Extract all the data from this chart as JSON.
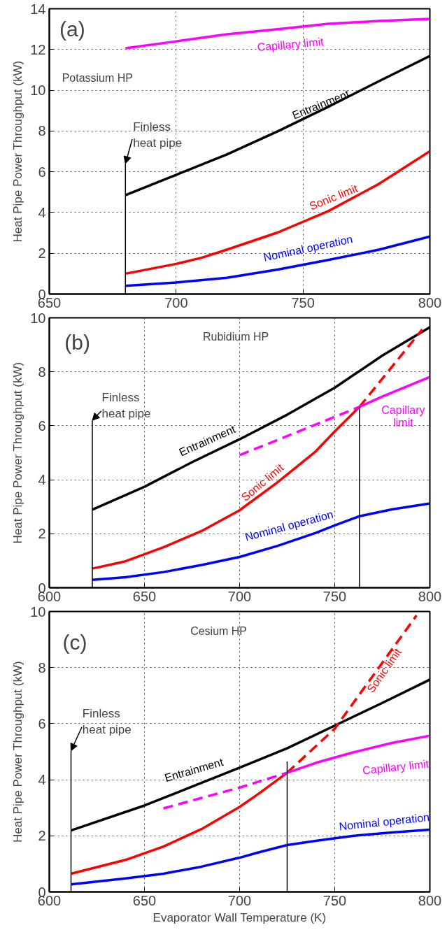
{
  "chart_data": [
    {
      "type": "line",
      "ylabel": "Heat Pipe Power Throughput (kW)",
      "xlim": [
        650,
        800
      ],
      "ylim": [
        0,
        14
      ],
      "xticks": [
        650,
        700,
        750,
        800
      ],
      "yticks": [
        0,
        2,
        4,
        6,
        8,
        10,
        12,
        14
      ],
      "grid": true,
      "series": [
        {
          "name": "Capillary limit",
          "color": "#ff00ff",
          "line_style": "solid",
          "x": [
            680,
            700,
            720,
            740,
            760,
            780,
            800
          ],
          "values": [
            12.06,
            12.4,
            12.75,
            13.0,
            13.26,
            13.4,
            13.5
          ]
        },
        {
          "name": "Entrainment",
          "color": "#000000",
          "line_style": "solid",
          "x": [
            680,
            700,
            720,
            740,
            760,
            780,
            800
          ],
          "values": [
            4.85,
            5.85,
            6.85,
            7.98,
            9.19,
            10.45,
            11.68
          ]
        },
        {
          "name": "Sonic limit",
          "color": "#ff0000",
          "line_style": "solid",
          "x": [
            680,
            700,
            710,
            720,
            740,
            760,
            780,
            800
          ],
          "values": [
            1.0,
            1.48,
            1.78,
            2.18,
            3.02,
            4.07,
            5.41,
            7.01
          ]
        },
        {
          "name": "Nominal operation",
          "color": "#0000ff",
          "line_style": "solid",
          "x": [
            680,
            700,
            720,
            740,
            760,
            780,
            800
          ],
          "values": [
            0.4,
            0.57,
            0.8,
            1.2,
            1.67,
            2.18,
            2.82
          ]
        },
        {
          "color": "#000000",
          "line_style": "solid",
          "x": [
            680,
            680
          ],
          "values": [
            0,
            6.4
          ]
        }
      ],
      "annotations": [
        "(a)",
        "Potassium HP",
        {
          "text": "Finless heat pipe",
          "x": 680,
          "y": 6.4
        }
      ]
    },
    {
      "type": "line",
      "ylabel": "Heat Pipe Power Throughput (kW)",
      "xlim": [
        600,
        800
      ],
      "ylim": [
        0,
        10
      ],
      "xticks": [
        600,
        650,
        700,
        750,
        800
      ],
      "yticks": [
        0,
        2,
        4,
        6,
        8,
        10
      ],
      "grid": true,
      "series": [
        {
          "name": "Entrainment",
          "color": "#000000",
          "line_style": "solid",
          "x": [
            622.6,
            650,
            675,
            700,
            725,
            750,
            775,
            800
          ],
          "values": [
            2.89,
            3.74,
            4.65,
            5.5,
            6.41,
            7.41,
            8.6,
            9.65
          ]
        },
        {
          "name": "Sonic limit",
          "color": "#ff0000",
          "line_style": "solid",
          "x": [
            622.6,
            640,
            660,
            680,
            700,
            720,
            740,
            750,
            763
          ],
          "values": [
            0.71,
            0.98,
            1.5,
            2.1,
            2.87,
            3.91,
            5.05,
            5.79,
            6.7
          ]
        },
        {
          "color": "#ff0000",
          "line_style": "dashed",
          "x": [
            763,
            796
          ],
          "values": [
            6.7,
            9.57
          ]
        },
        {
          "name": "Nominal operation",
          "color": "#0000ff",
          "line_style": "solid",
          "x": [
            622.6,
            640,
            660,
            680,
            700,
            720,
            740,
            750,
            763,
            780,
            800
          ],
          "values": [
            0.29,
            0.39,
            0.58,
            0.84,
            1.14,
            1.55,
            2.03,
            2.31,
            2.65,
            2.9,
            3.12
          ]
        },
        {
          "color": "#ff00ff",
          "line_style": "dashed",
          "x": [
            700,
            763
          ],
          "values": [
            4.91,
            6.7
          ]
        },
        {
          "name": "Capillary limit",
          "color": "#ff00ff",
          "line_style": "solid",
          "x": [
            763,
            775,
            800
          ],
          "values": [
            6.7,
            7.08,
            7.81
          ]
        },
        {
          "color": "#000000",
          "line_style": "solid",
          "x": [
            622.6,
            622.6
          ],
          "values": [
            0,
            6.2
          ]
        },
        {
          "color": "#000000",
          "line_style": "solid",
          "x": [
            763,
            763
          ],
          "values": [
            0,
            6.7
          ]
        }
      ],
      "annotations": [
        "(b)",
        "Rubidium HP",
        {
          "text": "Finless heat pipe",
          "x": 622.6,
          "y": 6.2
        }
      ]
    },
    {
      "type": "line",
      "xlabel": "Evaporator Wall Temperature (K)",
      "ylabel": "Heat Pipe Power Throughput (kW)",
      "xlim": [
        600,
        800
      ],
      "ylim": [
        0,
        10
      ],
      "xticks": [
        600,
        650,
        700,
        750,
        800
      ],
      "yticks": [
        0,
        2,
        4,
        6,
        8,
        10
      ],
      "grid": true,
      "series": [
        {
          "name": "Entrainment",
          "color": "#000000",
          "line_style": "solid",
          "x": [
            611.4,
            650,
            700,
            725,
            750,
            775,
            800
          ],
          "values": [
            2.19,
            3.08,
            4.43,
            5.12,
            5.93,
            6.74,
            7.57
          ]
        },
        {
          "color": "#ff0000",
          "line_style": "solid",
          "x": [
            611.4,
            640,
            660,
            680,
            700,
            710,
            725
          ],
          "values": [
            0.65,
            1.14,
            1.62,
            2.24,
            3.03,
            3.5,
            4.25
          ]
        },
        {
          "name": "Sonic limit",
          "color": "#ff0000",
          "line_style": "dashed",
          "x": [
            725,
            750,
            793
          ],
          "values": [
            4.25,
            5.82,
            9.86
          ]
        },
        {
          "color": "#ff00ff",
          "line_style": "dashed",
          "x": [
            660,
            700,
            725
          ],
          "values": [
            2.98,
            3.72,
            4.25
          ]
        },
        {
          "name": "Capillary limit",
          "color": "#ff00ff",
          "line_style": "solid",
          "x": [
            725,
            740,
            760,
            780,
            800
          ],
          "values": [
            4.25,
            4.6,
            4.98,
            5.31,
            5.57
          ]
        },
        {
          "name": "Nominal operation",
          "color": "#0000ff",
          "line_style": "solid",
          "x": [
            611.4,
            640,
            660,
            680,
            700,
            710,
            725,
            740,
            760,
            780,
            800
          ],
          "values": [
            0.27,
            0.48,
            0.65,
            0.9,
            1.22,
            1.41,
            1.67,
            1.82,
            2.0,
            2.12,
            2.22
          ]
        },
        {
          "color": "#000000",
          "line_style": "solid",
          "x": [
            611.4,
            611.4
          ],
          "values": [
            0,
            5.03
          ]
        },
        {
          "color": "#000000",
          "line_style": "solid",
          "x": [
            725,
            725
          ],
          "values": [
            0,
            4.65
          ]
        }
      ],
      "annotations": [
        "(c)",
        "Cesium HP",
        {
          "text": "Finless heat pipe",
          "x": 611.4,
          "y": 5.03
        }
      ]
    }
  ]
}
